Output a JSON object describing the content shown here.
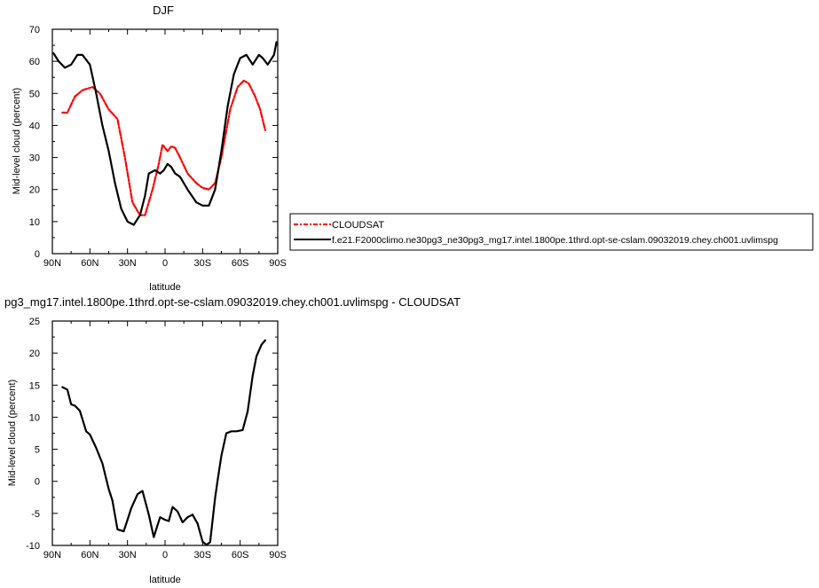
{
  "chart_data": [
    {
      "type": "line",
      "title": "DJF",
      "xlabel": "latitude",
      "ylabel": "Mid-level cloud (percent)",
      "xlim": [
        90,
        -90
      ],
      "ylim": [
        0,
        70
      ],
      "x_ticks": [
        {
          "value": 90,
          "label": "90N"
        },
        {
          "value": 60,
          "label": "60N"
        },
        {
          "value": 30,
          "label": "30N"
        },
        {
          "value": 0,
          "label": "0"
        },
        {
          "value": -30,
          "label": "30S"
        },
        {
          "value": -60,
          "label": "60S"
        },
        {
          "value": -90,
          "label": "90S"
        }
      ],
      "y_ticks": [
        0,
        10,
        20,
        30,
        40,
        50,
        60,
        70
      ],
      "legend_position": "right",
      "series": [
        {
          "name": "CLOUDSAT",
          "color": "#ff0000",
          "dash": "dashed",
          "x": [
            82,
            78,
            72,
            66,
            58,
            52,
            45,
            38,
            32,
            26,
            20,
            16,
            10,
            5,
            2,
            -2,
            -5,
            -8,
            -12,
            -18,
            -25,
            -30,
            -35,
            -40,
            -45,
            -52,
            -58,
            -63,
            -67,
            -72,
            -76,
            -80
          ],
          "y": [
            44,
            44,
            49,
            51,
            52,
            50,
            45,
            42,
            30,
            16,
            12,
            12,
            20,
            28,
            34,
            32,
            33.5,
            33,
            30,
            25,
            22,
            20.5,
            20,
            22,
            30,
            45,
            52,
            54,
            53,
            49,
            45,
            38.5
          ]
        },
        {
          "name": "f.e21.F2000climo.ne30pg3_ne30pg3_mg17.intel.1800pe.1thrd.opt-se-cslam.09032019.chey.ch001.uvlimspg",
          "color": "#000000",
          "dash": "solid",
          "x": [
            89,
            85,
            80,
            75,
            70,
            66,
            60,
            55,
            50,
            45,
            40,
            35,
            30,
            25,
            20,
            16,
            13,
            8,
            4,
            1,
            -2,
            -5,
            -8,
            -12,
            -18,
            -25,
            -30,
            -35,
            -40,
            -45,
            -50,
            -55,
            -60,
            -65,
            -70,
            -75,
            -78,
            -82,
            -87,
            -89
          ],
          "y": [
            62.5,
            60,
            58,
            59,
            62,
            62,
            59,
            50,
            40,
            32,
            22,
            14,
            10,
            9,
            12,
            18,
            25,
            26,
            25,
            26,
            28,
            27,
            25,
            24,
            20,
            16,
            15,
            15,
            20,
            32,
            46,
            56,
            61,
            62,
            59,
            62,
            61,
            59,
            62,
            66
          ]
        }
      ]
    },
    {
      "type": "line",
      "title": "pg3_mg17.intel.1800pe.1thrd.opt-se-cslam.09032019.chey.ch001.uvlimspg - CLOUDSAT",
      "xlabel": "latitude",
      "ylabel": "Mid-level cloud (percent)",
      "xlim": [
        90,
        -90
      ],
      "ylim": [
        -10,
        25
      ],
      "x_ticks": [
        {
          "value": 90,
          "label": "90N"
        },
        {
          "value": 60,
          "label": "60N"
        },
        {
          "value": 30,
          "label": "30N"
        },
        {
          "value": 0,
          "label": "0"
        },
        {
          "value": -30,
          "label": "30S"
        },
        {
          "value": -60,
          "label": "60S"
        },
        {
          "value": -90,
          "label": "90S"
        }
      ],
      "y_ticks": [
        -10,
        -5,
        0,
        5,
        10,
        15,
        20,
        25
      ],
      "series": [
        {
          "color": "#000000",
          "dash": "solid",
          "x": [
            82,
            78,
            75,
            72,
            68,
            63,
            60,
            55,
            50,
            45,
            42,
            38,
            33,
            30,
            27,
            22,
            18,
            13,
            9,
            4,
            0,
            -3,
            -6,
            -10,
            -14,
            -18,
            -22,
            -26,
            -30,
            -33,
            -36,
            -40,
            -42,
            -45,
            -49,
            -53,
            -57,
            -62,
            -66,
            -70,
            -73,
            -77,
            -80
          ],
          "y": [
            14.7,
            14.3,
            12,
            11.8,
            11,
            7.8,
            7.3,
            5.2,
            2.8,
            -1.2,
            -3,
            -7.5,
            -7.8,
            -6,
            -4.2,
            -2,
            -1.5,
            -5.2,
            -8.7,
            -5.6,
            -6,
            -6.2,
            -4,
            -4.7,
            -6.4,
            -5.6,
            -5.2,
            -6.6,
            -9.4,
            -9.9,
            -9.5,
            -2.6,
            0.2,
            4,
            7.5,
            7.8,
            7.8,
            8,
            10.9,
            16.5,
            19.5,
            21.3,
            22
          ]
        }
      ]
    }
  ]
}
